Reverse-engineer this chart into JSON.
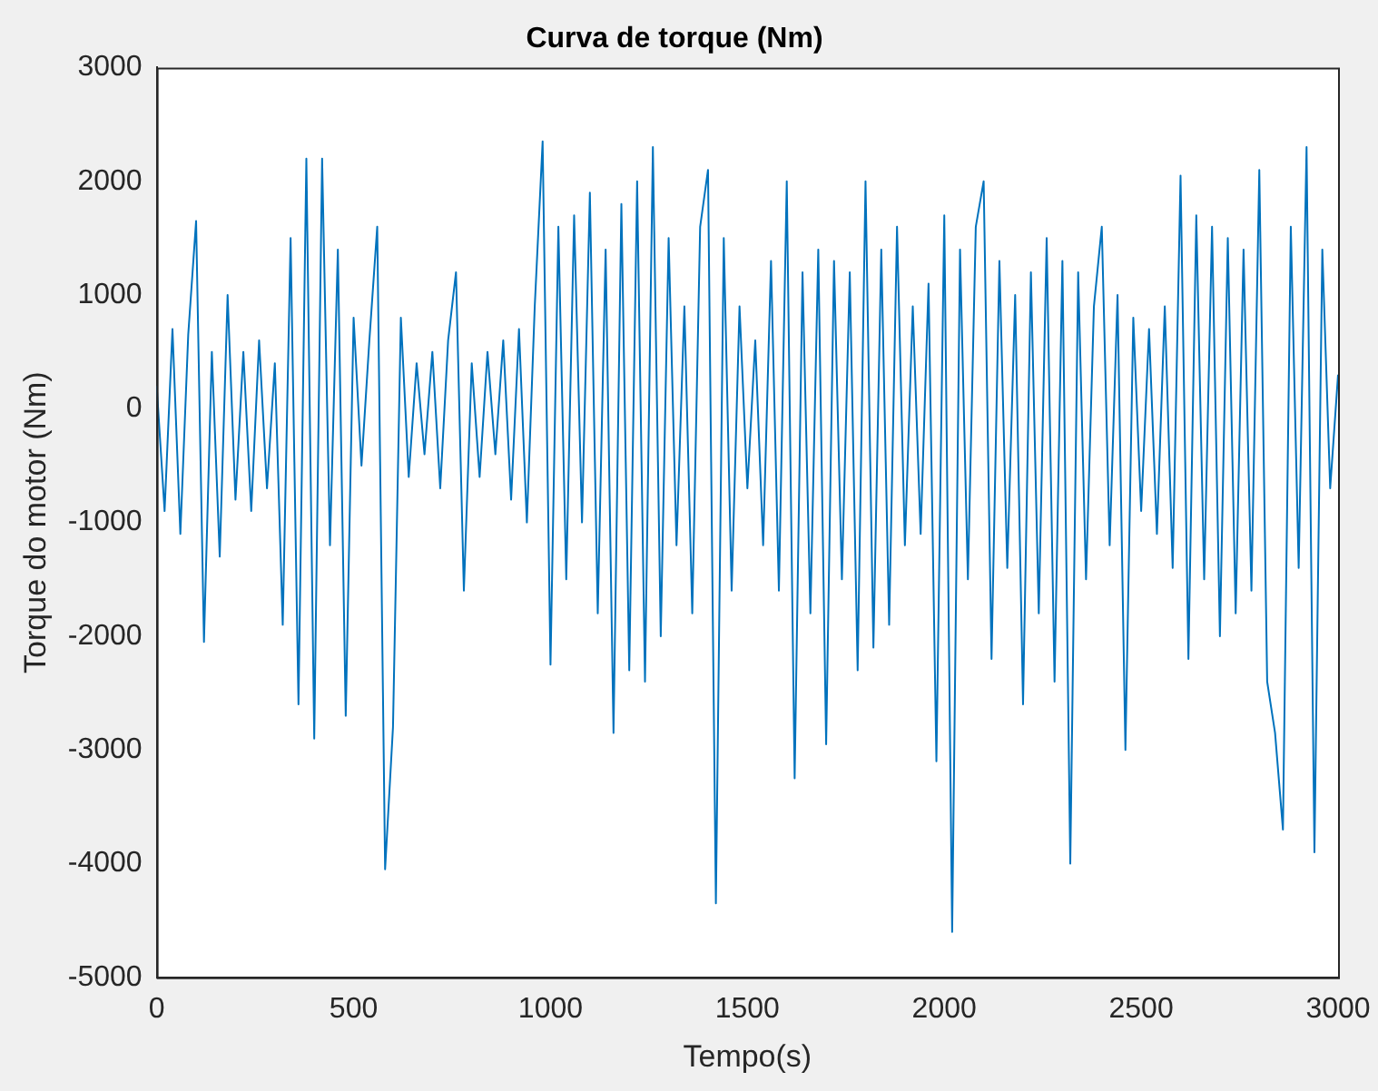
{
  "chart_data": {
    "type": "line",
    "title": "Curva de torque (Nm)",
    "xlabel": "Tempo(s)",
    "ylabel": "Torque do motor (Nm)",
    "xlim": [
      0,
      3000
    ],
    "xticks": [
      0,
      500,
      1000,
      1500,
      2000,
      2500,
      3000
    ],
    "ylim": [
      -5000,
      3000
    ],
    "yticks": [
      -5000,
      -4000,
      -3000,
      -2000,
      -1000,
      0,
      1000,
      2000,
      3000
    ],
    "grid": false,
    "legend": false,
    "marker": "none",
    "line_style": "solid",
    "series": [
      {
        "color": "#0072bd",
        "x": [
          0,
          20,
          40,
          60,
          80,
          100,
          120,
          140,
          160,
          180,
          200,
          220,
          240,
          260,
          280,
          300,
          320,
          340,
          360,
          380,
          400,
          420,
          440,
          460,
          480,
          500,
          520,
          540,
          560,
          580,
          600,
          620,
          640,
          660,
          680,
          700,
          720,
          740,
          760,
          780,
          800,
          820,
          840,
          860,
          880,
          900,
          920,
          940,
          960,
          980,
          1000,
          1020,
          1040,
          1060,
          1080,
          1100,
          1120,
          1140,
          1160,
          1180,
          1200,
          1220,
          1240,
          1260,
          1280,
          1300,
          1320,
          1340,
          1360,
          1380,
          1400,
          1420,
          1440,
          1460,
          1480,
          1500,
          1520,
          1540,
          1560,
          1580,
          1600,
          1620,
          1640,
          1660,
          1680,
          1700,
          1720,
          1740,
          1760,
          1780,
          1800,
          1820,
          1840,
          1860,
          1880,
          1900,
          1920,
          1940,
          1960,
          1980,
          2000,
          2020,
          2040,
          2060,
          2080,
          2100,
          2120,
          2140,
          2160,
          2180,
          2200,
          2220,
          2240,
          2260,
          2280,
          2300,
          2320,
          2340,
          2360,
          2380,
          2400,
          2420,
          2440,
          2460,
          2480,
          2500,
          2520,
          2540,
          2560,
          2580,
          2600,
          2620,
          2640,
          2660,
          2680,
          2700,
          2720,
          2740,
          2760,
          2780,
          2800,
          2820,
          2840,
          2860,
          2880,
          2900,
          2920,
          2940,
          2960,
          2980,
          3000
        ],
        "values": [
          200,
          -900,
          700,
          -1100,
          650,
          1650,
          -2050,
          500,
          -1300,
          1000,
          -800,
          500,
          -900,
          600,
          -700,
          400,
          -1900,
          1500,
          -2600,
          2200,
          -2900,
          2200,
          -1200,
          1400,
          -2700,
          800,
          -500,
          600,
          1600,
          -4050,
          -2800,
          800,
          -600,
          400,
          -400,
          500,
          -700,
          600,
          1200,
          -1600,
          400,
          -600,
          500,
          -400,
          600,
          -800,
          700,
          -1000,
          900,
          2350,
          -2250,
          1600,
          -1500,
          1700,
          -1000,
          1900,
          -1800,
          1400,
          -2850,
          1800,
          -2300,
          2000,
          -2400,
          2300,
          -2000,
          1500,
          -1200,
          900,
          -1800,
          1600,
          2100,
          -4350,
          1500,
          -1600,
          900,
          -700,
          600,
          -1200,
          1300,
          -1600,
          2000,
          -3250,
          1200,
          -1800,
          1400,
          -2950,
          1300,
          -1500,
          1200,
          -2300,
          2000,
          -2100,
          1400,
          -1900,
          1600,
          -1200,
          900,
          -1100,
          1100,
          -3100,
          1700,
          -4600,
          1400,
          -1500,
          1600,
          2000,
          -2200,
          1300,
          -1400,
          1000,
          -2600,
          1200,
          -1800,
          1500,
          -2400,
          1300,
          -4000,
          1200,
          -1500,
          900,
          1600,
          -1200,
          1000,
          -3000,
          800,
          -900,
          700,
          -1100,
          900,
          -1400,
          2050,
          -2200,
          1700,
          -1500,
          1600,
          -2000,
          1500,
          -1800,
          1400,
          -1600,
          2100,
          -2400,
          -2850,
          -3700,
          1600,
          -1400,
          2300,
          -3900,
          1400,
          -700,
          300
        ]
      }
    ]
  }
}
